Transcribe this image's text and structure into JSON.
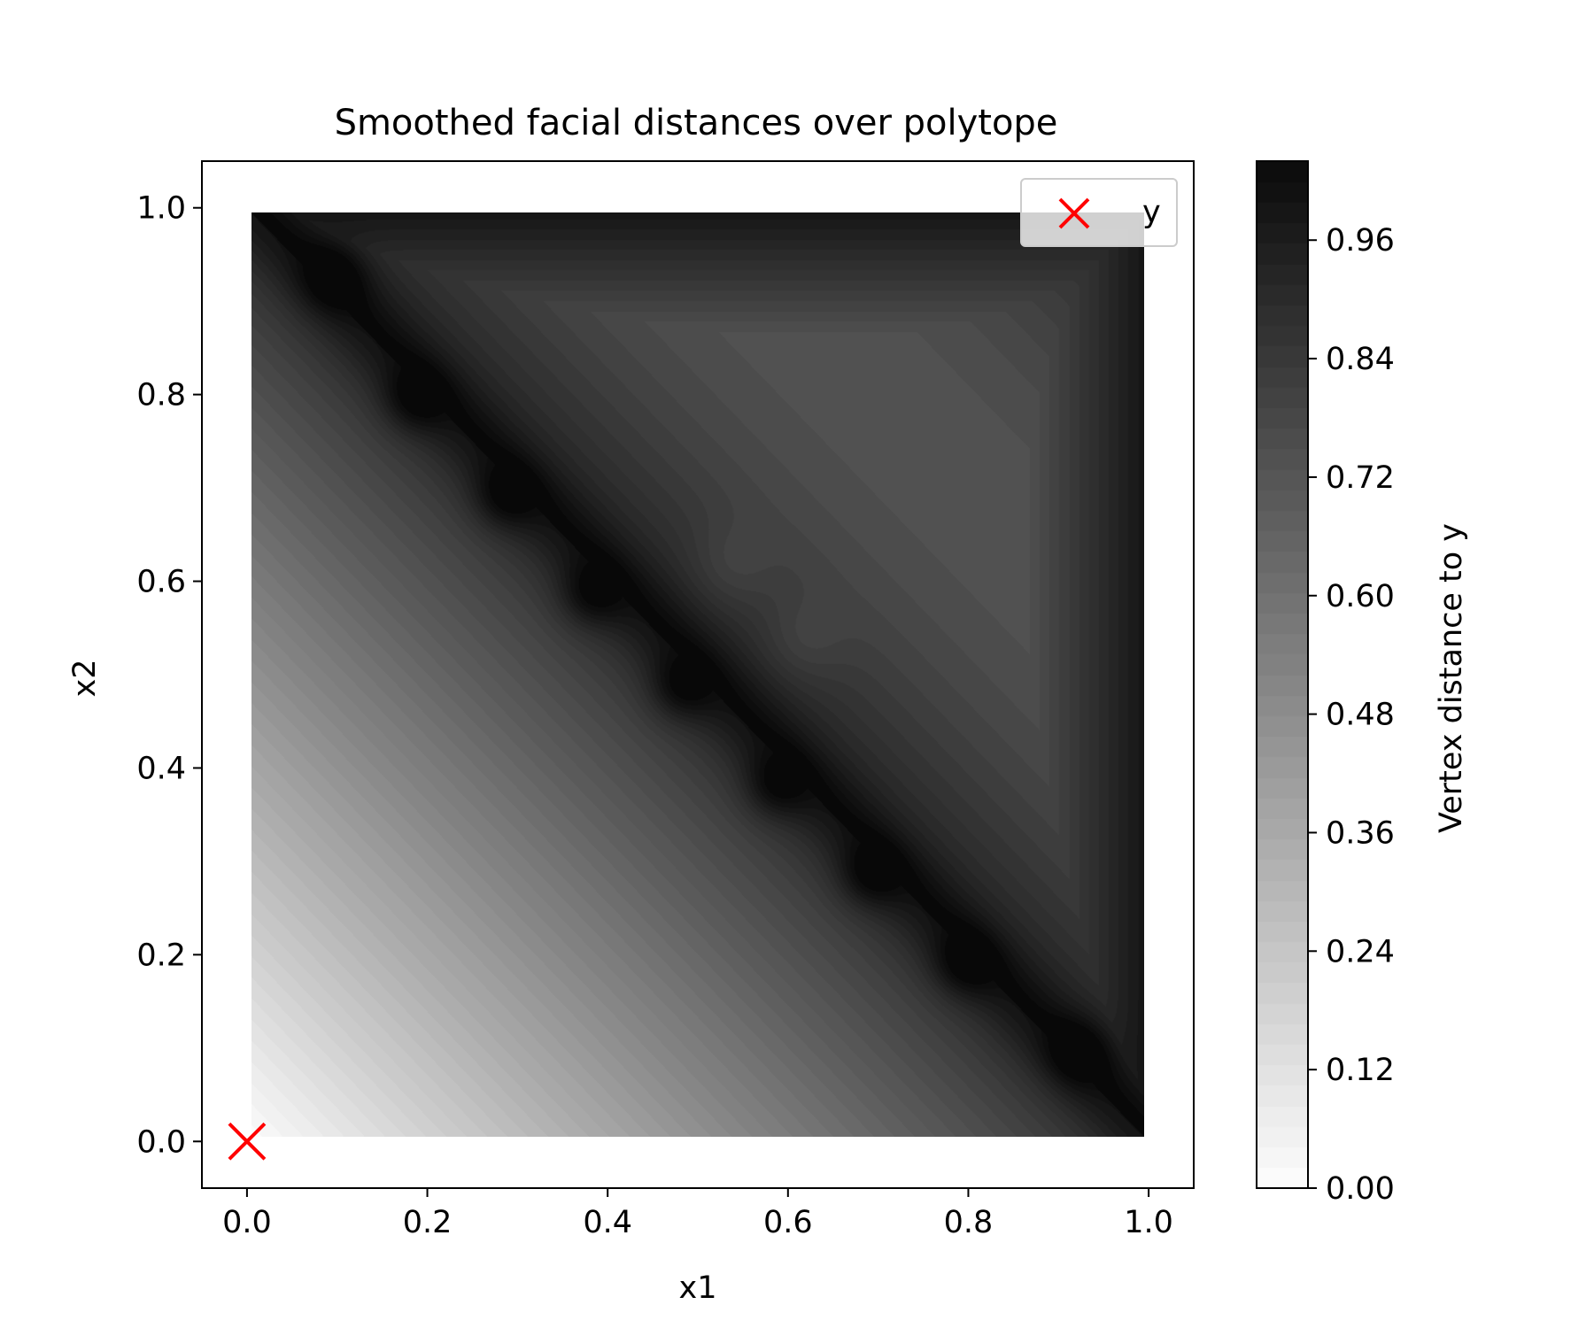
{
  "chart_data": {
    "type": "heatmap",
    "title": "Smoothed facial distances over polytope",
    "xlabel": "x1",
    "ylabel": "x2",
    "xlim": [
      -0.05,
      1.05
    ],
    "ylim": [
      -0.05,
      1.05
    ],
    "xticks": [
      0.0,
      0.2,
      0.4,
      0.6,
      0.8,
      1.0
    ],
    "xtick_labels": [
      "0.0",
      "0.2",
      "0.4",
      "0.6",
      "0.8",
      "1.0"
    ],
    "yticks": [
      0.0,
      0.2,
      0.4,
      0.6,
      0.8,
      1.0
    ],
    "ytick_labels": [
      "0.0",
      "0.2",
      "0.4",
      "0.6",
      "0.8",
      "1.0"
    ],
    "field": {
      "x_range": [
        0.005,
        0.995
      ],
      "y_range": [
        0.005,
        0.995
      ],
      "description_of_values": "distance to y (0 at origin, rising along x1+x2) with dark minima along diagonal x1+x2≈1 and dark border",
      "diagonal_minima": [
        {
          "x": 0.095,
          "y": 0.925
        },
        {
          "x": 0.185,
          "y": 0.795
        },
        {
          "x": 0.285,
          "y": 0.69
        },
        {
          "x": 0.38,
          "y": 0.585
        },
        {
          "x": 0.48,
          "y": 0.485
        },
        {
          "x": 0.585,
          "y": 0.38
        },
        {
          "x": 0.69,
          "y": 0.285
        },
        {
          "x": 0.795,
          "y": 0.19
        },
        {
          "x": 0.92,
          "y": 0.095
        }
      ],
      "light_spots": [
        {
          "x": 0.535,
          "y": 0.615
        },
        {
          "x": 0.615,
          "y": 0.535
        }
      ]
    },
    "colorbar": {
      "label": "Vertex distance to y",
      "colormap": "Greys",
      "range": [
        0.0,
        1.04
      ],
      "ticks": [
        0.0,
        0.12,
        0.24,
        0.36,
        0.48,
        0.6,
        0.72,
        0.84,
        0.96
      ],
      "tick_labels": [
        "0.00",
        "0.12",
        "0.24",
        "0.36",
        "0.48",
        "0.60",
        "0.72",
        "0.84",
        "0.96"
      ],
      "levels": 50
    },
    "points": [
      {
        "name": "y",
        "x": 0.0,
        "y": 0.0,
        "marker": "x",
        "color": "#ff0000"
      }
    ],
    "legend": {
      "placement": "upper right",
      "entries": [
        "y"
      ]
    },
    "grid": false
  }
}
